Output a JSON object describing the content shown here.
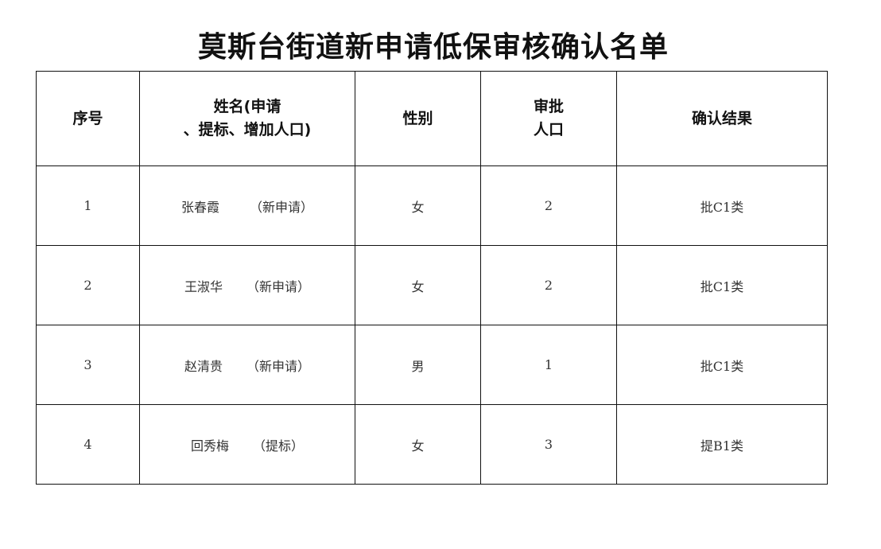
{
  "title": "莫斯台街道新申请低保审核确认名单",
  "headers": {
    "index": "序号",
    "name_line1": "姓名(申请",
    "name_line2": "、提标、增加人口)",
    "gender": "性别",
    "approved_line1": "审批",
    "approved_line2": "人口",
    "result": "确认结果"
  },
  "rows": [
    {
      "index": "1",
      "name": "张春霞",
      "type": "（新申请）",
      "gender": "女",
      "approved": "2",
      "result": "批C1类"
    },
    {
      "index": "2",
      "name": "王淑华",
      "type": "（新申请）",
      "gender": "女",
      "approved": "2",
      "result": "批C1类"
    },
    {
      "index": "3",
      "name": "赵清贵",
      "type": "（新申请）",
      "gender": "男",
      "approved": "1",
      "result": "批C1类"
    },
    {
      "index": "4",
      "name": "回秀梅",
      "type": "（提标）",
      "gender": "女",
      "approved": "3",
      "result": "提B1类"
    }
  ]
}
